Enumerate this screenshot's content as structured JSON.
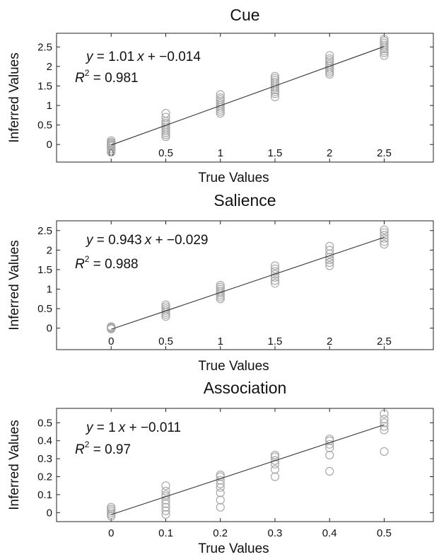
{
  "chart_data": [
    {
      "type": "scatter",
      "title": "Cue",
      "xlabel": "True Values",
      "ylabel": "Inferred Values",
      "xlim": [
        -0.5,
        2.95
      ],
      "ylim": [
        -0.45,
        2.85
      ],
      "xticks": [
        0,
        0.5,
        1,
        1.5,
        2,
        2.5
      ],
      "xtick_labels": [
        "0",
        "0.5",
        "1",
        "1.5",
        "2",
        "2.5"
      ],
      "yticks": [
        0,
        0.5,
        1,
        1.5,
        2,
        2.5
      ],
      "ytick_labels": [
        "0",
        "0.5",
        "1",
        "1.5",
        "2",
        "2.5"
      ],
      "grid": false,
      "equation": {
        "y": "y",
        "rest": " = 1.01",
        "x": "x",
        "tail": " + −0.014"
      },
      "r2": {
        "r": "R",
        "sup": "2",
        "val": " = 0.981"
      },
      "fit": {
        "slope": 1.01,
        "intercept": -0.014
      },
      "points": [
        {
          "x": 0,
          "y": [
            -0.2,
            -0.15,
            -0.1,
            -0.05,
            -0.02,
            0,
            0.03,
            0.06,
            0.1
          ]
        },
        {
          "x": 0.5,
          "y": [
            0.2,
            0.25,
            0.3,
            0.35,
            0.4,
            0.45,
            0.5,
            0.55,
            0.6,
            0.7,
            0.8
          ]
        },
        {
          "x": 1,
          "y": [
            0.8,
            0.85,
            0.9,
            0.95,
            1.0,
            1.05,
            1.1,
            1.15,
            1.2,
            1.28
          ]
        },
        {
          "x": 1.5,
          "y": [
            1.22,
            1.3,
            1.35,
            1.4,
            1.45,
            1.5,
            1.55,
            1.6,
            1.65,
            1.7,
            1.75
          ]
        },
        {
          "x": 2,
          "y": [
            1.8,
            1.85,
            1.9,
            1.95,
            2.0,
            2.05,
            2.1,
            2.15,
            2.2,
            2.28
          ]
        },
        {
          "x": 2.5,
          "y": [
            2.28,
            2.35,
            2.4,
            2.45,
            2.5,
            2.55,
            2.6,
            2.65,
            2.7
          ]
        }
      ]
    },
    {
      "type": "scatter",
      "title": "Salience",
      "xlabel": "True Values",
      "ylabel": "Inferred Values",
      "xlim": [
        -0.5,
        2.95
      ],
      "ylim": [
        -0.55,
        2.75
      ],
      "xticks": [
        0,
        0.5,
        1,
        1.5,
        2,
        2.5
      ],
      "xtick_labels": [
        "0",
        "0.5",
        "1",
        "1.5",
        "2",
        "2.5"
      ],
      "yticks": [
        0,
        0.5,
        1,
        1.5,
        2,
        2.5
      ],
      "ytick_labels": [
        "0",
        "0.5",
        "1",
        "1.5",
        "2",
        "2.5"
      ],
      "grid": false,
      "equation": {
        "y": "y",
        "rest": " = 0.943",
        "x": "x",
        "tail": " + −0.029"
      },
      "r2": {
        "r": "R",
        "sup": "2",
        "val": " = 0.988"
      },
      "fit": {
        "slope": 0.943,
        "intercept": -0.029
      },
      "points": [
        {
          "x": 0,
          "y": [
            -0.02,
            0,
            0.02,
            0.04
          ]
        },
        {
          "x": 0.5,
          "y": [
            0.3,
            0.35,
            0.4,
            0.45,
            0.5,
            0.55,
            0.6
          ]
        },
        {
          "x": 1,
          "y": [
            0.75,
            0.8,
            0.85,
            0.9,
            0.95,
            1.0,
            1.05,
            1.1
          ]
        },
        {
          "x": 1.5,
          "y": [
            1.15,
            1.22,
            1.3,
            1.38,
            1.45,
            1.52,
            1.6
          ]
        },
        {
          "x": 2,
          "y": [
            1.6,
            1.68,
            1.75,
            1.82,
            1.9,
            2.0,
            2.1
          ]
        },
        {
          "x": 2.5,
          "y": [
            2.15,
            2.22,
            2.3,
            2.38,
            2.45,
            2.52
          ]
        }
      ]
    },
    {
      "type": "scatter",
      "title": "Association",
      "xlabel": "True Values",
      "ylabel": "Inferred Values",
      "xlim": [
        -0.1,
        0.59
      ],
      "ylim": [
        -0.05,
        0.58
      ],
      "xticks": [
        0,
        0.1,
        0.2,
        0.3,
        0.4,
        0.5
      ],
      "xtick_labels": [
        "0",
        "0.1",
        "0.2",
        "0.3",
        "0.4",
        "0.5"
      ],
      "yticks": [
        0,
        0.1,
        0.2,
        0.3,
        0.4,
        0.5
      ],
      "ytick_labels": [
        "0",
        "0.1",
        "0.2",
        "0.3",
        "0.4",
        "0.5"
      ],
      "grid": false,
      "equation": {
        "y": "y",
        "rest": " = 1",
        "x": "x",
        "tail": " + −0.011"
      },
      "r2": {
        "r": "R",
        "sup": "2",
        "val": " = 0.97"
      },
      "fit": {
        "slope": 1,
        "intercept": -0.011
      },
      "points": [
        {
          "x": 0,
          "y": [
            -0.02,
            -0.01,
            0,
            0.01,
            0.02,
            0.03
          ]
        },
        {
          "x": 0.1,
          "y": [
            -0.01,
            0.01,
            0.03,
            0.05,
            0.07,
            0.09,
            0.1,
            0.12,
            0.15
          ]
        },
        {
          "x": 0.2,
          "y": [
            0.03,
            0.07,
            0.11,
            0.14,
            0.16,
            0.18,
            0.2,
            0.21
          ]
        },
        {
          "x": 0.3,
          "y": [
            0.2,
            0.24,
            0.27,
            0.29,
            0.31,
            0.32
          ]
        },
        {
          "x": 0.4,
          "y": [
            0.23,
            0.32,
            0.36,
            0.38,
            0.4,
            0.41
          ]
        },
        {
          "x": 0.5,
          "y": [
            0.34,
            0.46,
            0.48,
            0.5,
            0.52,
            0.55
          ]
        }
      ]
    }
  ]
}
